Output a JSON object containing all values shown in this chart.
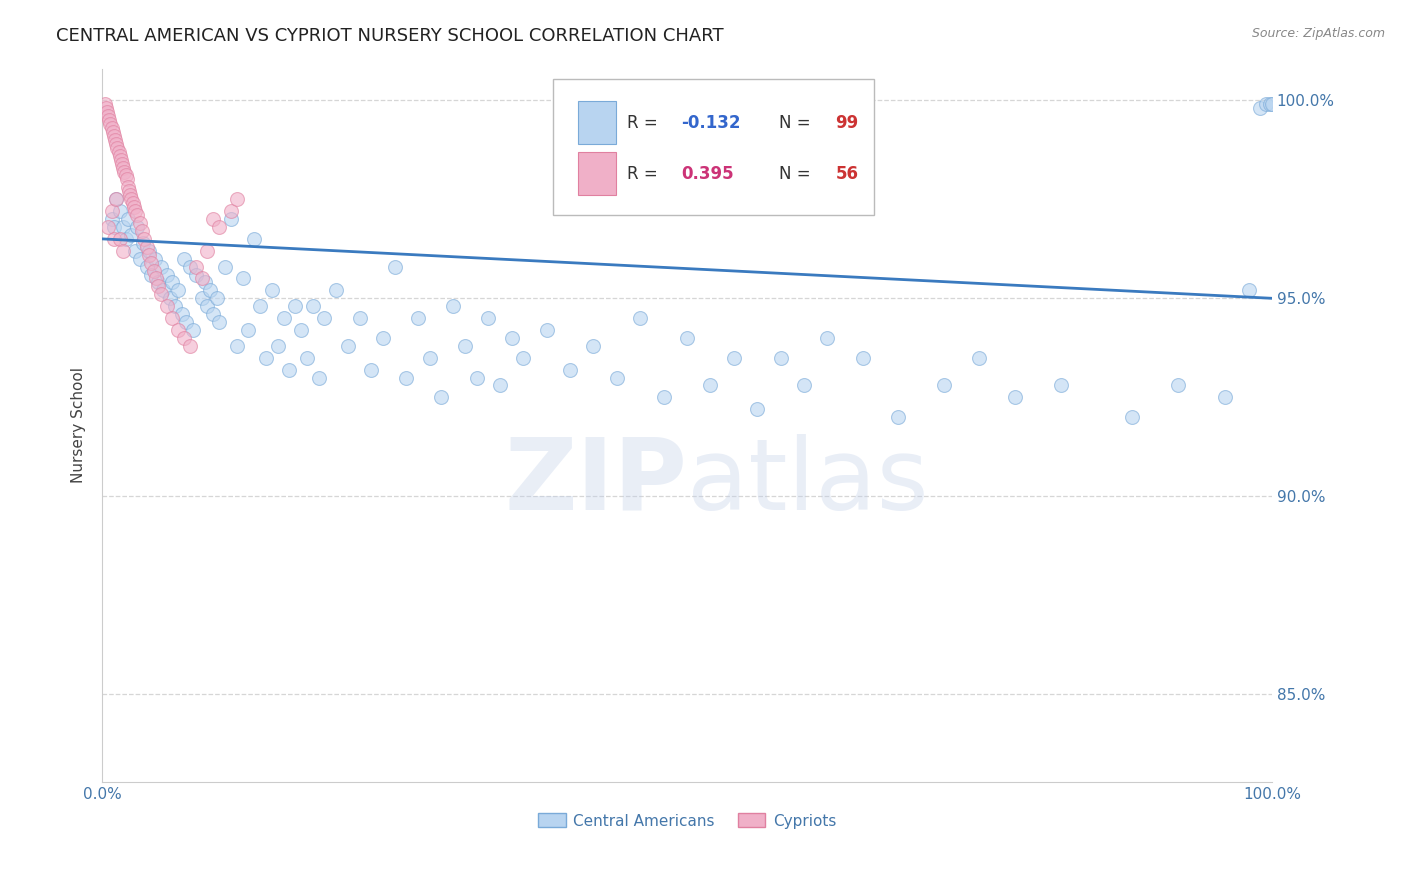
{
  "title": "CENTRAL AMERICAN VS CYPRIOT NURSERY SCHOOL CORRELATION CHART",
  "source_text": "Source: ZipAtlas.com",
  "ylabel": "Nursery School",
  "xlim": [
    0.0,
    1.0
  ],
  "ylim": [
    0.828,
    1.008
  ],
  "yticks": [
    0.85,
    0.9,
    0.95,
    1.0
  ],
  "ytick_labels": [
    "85.0%",
    "90.0%",
    "95.0%",
    "100.0%"
  ],
  "blue_R": -0.132,
  "blue_N": 99,
  "pink_R": 0.395,
  "pink_N": 56,
  "blue_color": "#b8d4f0",
  "blue_edge_color": "#7aaad8",
  "pink_color": "#f0b0c8",
  "pink_edge_color": "#e080a0",
  "trend_color": "#3a7abf",
  "trend_linewidth": 2.0,
  "scatter_size": 100,
  "scatter_alpha": 0.6,
  "grid_color": "#999999",
  "grid_linestyle": "--",
  "grid_alpha": 0.4,
  "background_color": "#ffffff",
  "title_fontsize": 13,
  "title_color": "#222222",
  "axis_label_color": "#444444",
  "tick_label_color": "#4477aa",
  "legend_R_color_blue": "#3366cc",
  "legend_R_color_pink": "#cc3377",
  "legend_N_color_blue": "#cc3333",
  "legend_N_color_pink": "#cc3333",
  "watermark_color": "#c0cfe8",
  "watermark_alpha": 0.35,
  "watermark_fontsize": 72,
  "legend_fontsize": 12,
  "bottom_legend_labels": [
    "Central Americans",
    "Cypriots"
  ],
  "trend_x_start": 0.0,
  "trend_x_end": 1.0,
  "trend_y_start": 0.965,
  "trend_y_end": 0.95,
  "blue_x": [
    0.008,
    0.01,
    0.012,
    0.015,
    0.018,
    0.02,
    0.022,
    0.025,
    0.028,
    0.03,
    0.032,
    0.035,
    0.038,
    0.04,
    0.042,
    0.045,
    0.048,
    0.05,
    0.052,
    0.055,
    0.058,
    0.06,
    0.062,
    0.065,
    0.068,
    0.07,
    0.072,
    0.075,
    0.078,
    0.08,
    0.085,
    0.088,
    0.09,
    0.092,
    0.095,
    0.098,
    0.1,
    0.105,
    0.11,
    0.115,
    0.12,
    0.125,
    0.13,
    0.135,
    0.14,
    0.145,
    0.15,
    0.155,
    0.16,
    0.165,
    0.17,
    0.175,
    0.18,
    0.185,
    0.19,
    0.2,
    0.21,
    0.22,
    0.23,
    0.24,
    0.25,
    0.26,
    0.27,
    0.28,
    0.29,
    0.3,
    0.31,
    0.32,
    0.33,
    0.34,
    0.35,
    0.36,
    0.38,
    0.4,
    0.42,
    0.44,
    0.46,
    0.48,
    0.5,
    0.52,
    0.54,
    0.56,
    0.58,
    0.6,
    0.62,
    0.65,
    0.68,
    0.72,
    0.75,
    0.78,
    0.82,
    0.88,
    0.92,
    0.96,
    0.98,
    0.99,
    0.995,
    0.998,
    1.0
  ],
  "blue_y": [
    0.97,
    0.968,
    0.975,
    0.972,
    0.968,
    0.965,
    0.97,
    0.966,
    0.962,
    0.968,
    0.96,
    0.964,
    0.958,
    0.962,
    0.956,
    0.96,
    0.954,
    0.958,
    0.952,
    0.956,
    0.95,
    0.954,
    0.948,
    0.952,
    0.946,
    0.96,
    0.944,
    0.958,
    0.942,
    0.956,
    0.95,
    0.954,
    0.948,
    0.952,
    0.946,
    0.95,
    0.944,
    0.958,
    0.97,
    0.938,
    0.955,
    0.942,
    0.965,
    0.948,
    0.935,
    0.952,
    0.938,
    0.945,
    0.932,
    0.948,
    0.942,
    0.935,
    0.948,
    0.93,
    0.945,
    0.952,
    0.938,
    0.945,
    0.932,
    0.94,
    0.958,
    0.93,
    0.945,
    0.935,
    0.925,
    0.948,
    0.938,
    0.93,
    0.945,
    0.928,
    0.94,
    0.935,
    0.942,
    0.932,
    0.938,
    0.93,
    0.945,
    0.925,
    0.94,
    0.928,
    0.935,
    0.922,
    0.935,
    0.928,
    0.94,
    0.935,
    0.92,
    0.928,
    0.935,
    0.925,
    0.928,
    0.92,
    0.928,
    0.925,
    0.952,
    0.998,
    0.999,
    0.999,
    0.999
  ],
  "pink_x": [
    0.002,
    0.003,
    0.004,
    0.005,
    0.006,
    0.007,
    0.008,
    0.009,
    0.01,
    0.011,
    0.012,
    0.013,
    0.014,
    0.015,
    0.016,
    0.017,
    0.018,
    0.019,
    0.02,
    0.021,
    0.022,
    0.023,
    0.024,
    0.025,
    0.026,
    0.027,
    0.028,
    0.03,
    0.032,
    0.034,
    0.036,
    0.038,
    0.04,
    0.042,
    0.044,
    0.046,
    0.048,
    0.05,
    0.055,
    0.06,
    0.065,
    0.07,
    0.075,
    0.08,
    0.085,
    0.09,
    0.095,
    0.1,
    0.11,
    0.115,
    0.005,
    0.008,
    0.01,
    0.012,
    0.015,
    0.018
  ],
  "pink_y": [
    0.999,
    0.998,
    0.997,
    0.996,
    0.995,
    0.994,
    0.993,
    0.992,
    0.991,
    0.99,
    0.989,
    0.988,
    0.987,
    0.986,
    0.985,
    0.984,
    0.983,
    0.982,
    0.981,
    0.98,
    0.978,
    0.977,
    0.976,
    0.975,
    0.974,
    0.973,
    0.972,
    0.971,
    0.969,
    0.967,
    0.965,
    0.963,
    0.961,
    0.959,
    0.957,
    0.955,
    0.953,
    0.951,
    0.948,
    0.945,
    0.942,
    0.94,
    0.938,
    0.958,
    0.955,
    0.962,
    0.97,
    0.968,
    0.972,
    0.975,
    0.968,
    0.972,
    0.965,
    0.975,
    0.965,
    0.962
  ]
}
